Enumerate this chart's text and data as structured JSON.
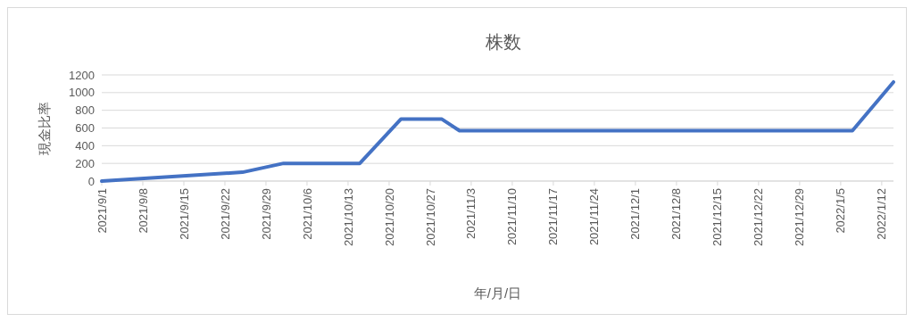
{
  "chart_data": {
    "type": "line",
    "title": "株数",
    "xlabel": "年/月/日",
    "ylabel": "現金比率",
    "x": [
      "2021-09-01",
      "2021-09-25",
      "2021-10-02",
      "2021-10-15",
      "2021-10-22",
      "2021-10-29",
      "2021-11-01",
      "2022-01-07",
      "2022-01-14"
    ],
    "series": [
      {
        "color": "#4472c4",
        "values": [
          0,
          100,
          200,
          200,
          700,
          700,
          570,
          570,
          1120
        ]
      }
    ],
    "xlim": [
      "2021-09-01",
      "2022-01-14"
    ],
    "xticks": [
      {
        "value": "2021-09-01",
        "label": "2021/9/1"
      },
      {
        "value": "2021-09-08",
        "label": "2021/9/8"
      },
      {
        "value": "2021-09-15",
        "label": "2021/9/15"
      },
      {
        "value": "2021-09-22",
        "label": "2021/9/22"
      },
      {
        "value": "2021-09-29",
        "label": "2021/9/29"
      },
      {
        "value": "2021-10-06",
        "label": "2021/10/6"
      },
      {
        "value": "2021-10-13",
        "label": "2021/10/13"
      },
      {
        "value": "2021-10-20",
        "label": "2021/10/20"
      },
      {
        "value": "2021-10-27",
        "label": "2021/10/27"
      },
      {
        "value": "2021-11-03",
        "label": "2021/11/3"
      },
      {
        "value": "2021-11-10",
        "label": "2021/11/10"
      },
      {
        "value": "2021-11-17",
        "label": "2021/11/17"
      },
      {
        "value": "2021-11-24",
        "label": "2021/11/24"
      },
      {
        "value": "2021-12-01",
        "label": "2021/12/1"
      },
      {
        "value": "2021-12-08",
        "label": "2021/12/8"
      },
      {
        "value": "2021-12-15",
        "label": "2021/12/15"
      },
      {
        "value": "2021-12-22",
        "label": "2021/12/22"
      },
      {
        "value": "2021-12-29",
        "label": "2021/12/29"
      },
      {
        "value": "2022-01-05",
        "label": "2022/1/5"
      },
      {
        "value": "2022-01-12",
        "label": "2022/1/12"
      }
    ],
    "ylim": [
      0,
      1200
    ],
    "yticks": [
      0,
      200,
      400,
      600,
      800,
      1000,
      1200
    ],
    "grid": "y",
    "marker": "none",
    "line_style": "solid"
  }
}
